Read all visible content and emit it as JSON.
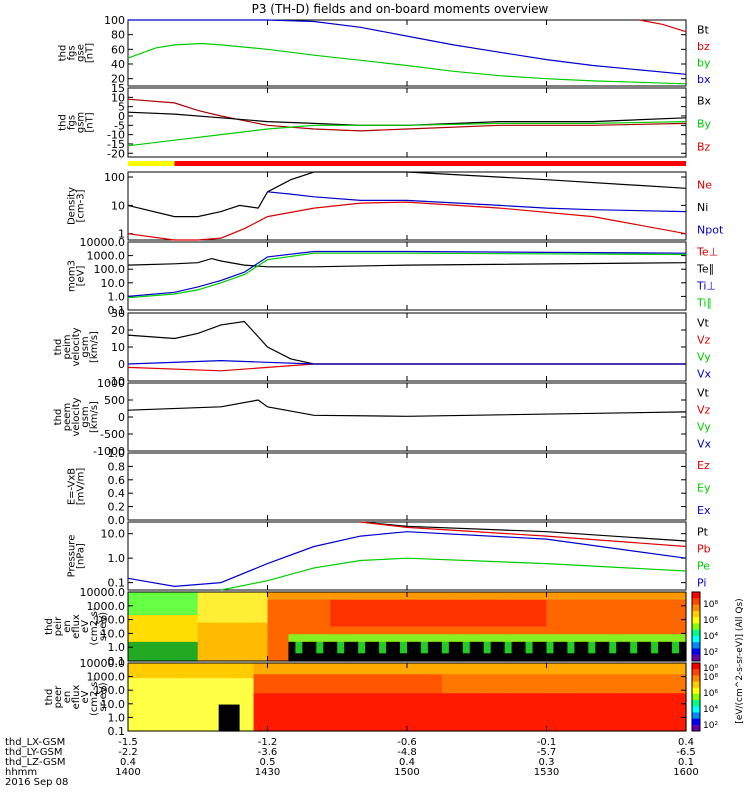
{
  "title": "P3 (TH-D) fields and on-board moments overview",
  "chart_data": [
    {
      "type": "line",
      "panel": "fgs_gse",
      "ylabel": [
        "thd",
        "fgs",
        "gse",
        "[nT]"
      ],
      "yticks": [
        "100",
        "80",
        "60",
        "40",
        "20"
      ],
      "ylim": [
        10,
        100
      ],
      "legend": [
        {
          "name": "Bt",
          "color": "#000000"
        },
        {
          "name": "bz",
          "color": "#dd0000"
        },
        {
          "name": "by",
          "color": "#00cc00"
        },
        {
          "name": "bx",
          "color": "#0000cc"
        }
      ],
      "series": [
        {
          "name": "bx",
          "color": "#0000cc",
          "x": [
            1400,
            1410,
            1420,
            1430,
            1440,
            1450,
            1500,
            1510,
            1520,
            1530,
            1540,
            1550,
            1600
          ],
          "y": [
            100,
            100,
            100,
            100,
            98,
            90,
            78,
            66,
            56,
            46,
            38,
            32,
            26
          ]
        },
        {
          "name": "by",
          "color": "#00cc00",
          "x": [
            1400,
            1406,
            1410,
            1416,
            1420,
            1430,
            1440,
            1450,
            1500,
            1510,
            1520,
            1530,
            1540,
            1550,
            1600
          ],
          "y": [
            48,
            62,
            66,
            68,
            66,
            60,
            52,
            45,
            38,
            30,
            24,
            20,
            17,
            15,
            13
          ]
        },
        {
          "name": "bz",
          "color": "#dd0000",
          "x": [
            1550,
            1555,
            1600
          ],
          "y": [
            100,
            94,
            84
          ]
        }
      ]
    },
    {
      "type": "line",
      "panel": "fgs_gsm",
      "ylabel": [
        "thd",
        "fgs",
        "gsm",
        "[nT]"
      ],
      "yticks": [
        "15",
        "10",
        "5",
        "0",
        "-5",
        "-10",
        "-15",
        "-20"
      ],
      "ylim": [
        -22,
        15
      ],
      "legend": [
        {
          "name": "Bx",
          "color": "#000000"
        },
        {
          "name": "By",
          "color": "#00cc00"
        },
        {
          "name": "Bz",
          "color": "#dd0000"
        }
      ],
      "series": [
        {
          "name": "Bz",
          "color": "#aa0000",
          "x": [
            1400,
            1410,
            1415,
            1420,
            1430,
            1440,
            1450,
            1500,
            1520,
            1540,
            1600
          ],
          "y": [
            9,
            7,
            3,
            0,
            -5,
            -7,
            -8,
            -7,
            -5,
            -5,
            -4
          ]
        },
        {
          "name": "Bx",
          "color": "#000000",
          "x": [
            1400,
            1410,
            1420,
            1430,
            1440,
            1450,
            1500,
            1520,
            1540,
            1600
          ],
          "y": [
            2,
            1,
            -1,
            -3,
            -4,
            -5,
            -5,
            -3,
            -3,
            -1
          ]
        },
        {
          "name": "By",
          "color": "#00cc00",
          "x": [
            1400,
            1410,
            1420,
            1430,
            1440,
            1450,
            1500,
            1520,
            1540,
            1600
          ],
          "y": [
            -16,
            -13,
            -10,
            -7,
            -5,
            -5,
            -5,
            -4,
            -4,
            -3
          ]
        }
      ]
    },
    {
      "type": "line",
      "panel": "density",
      "ylabel": [
        "Density",
        "[cm-3]"
      ],
      "yticks": [
        "100",
        "10",
        "1"
      ],
      "ylog": true,
      "ylim": [
        0.6,
        150
      ],
      "legend": [
        {
          "name": "Ne",
          "color": "#dd0000"
        },
        {
          "name": "Ni",
          "color": "#000000"
        },
        {
          "name": "Npot",
          "color": "#0000cc"
        }
      ],
      "series": [
        {
          "name": "Ni",
          "color": "#000000",
          "x": [
            1400,
            1410,
            1415,
            1420,
            1424,
            1428,
            1430,
            1435,
            1440,
            1500,
            1530,
            1600
          ],
          "y": [
            10,
            4,
            4,
            6,
            10,
            8,
            30,
            80,
            150,
            150,
            80,
            40
          ]
        },
        {
          "name": "Ne",
          "color": "#dd0000",
          "x": [
            1400,
            1410,
            1415,
            1420,
            1425,
            1430,
            1440,
            1450,
            1500,
            1520,
            1540,
            1600
          ],
          "y": [
            1,
            0.6,
            0.6,
            0.7,
            1.5,
            4,
            8,
            12,
            13,
            8,
            4,
            1
          ]
        },
        {
          "name": "Npot",
          "color": "#0000cc",
          "x": [
            1430,
            1435,
            1440,
            1450,
            1500,
            1520,
            1530,
            1540,
            1600
          ],
          "y": [
            30,
            25,
            20,
            15,
            15,
            10,
            8,
            7,
            6
          ]
        }
      ]
    },
    {
      "type": "line",
      "panel": "temperature",
      "ylabel": [
        "mom3",
        "[eV]"
      ],
      "yticks": [
        "10000.0",
        "1000.0",
        "100.0",
        "10.0",
        "1.0",
        "0.1"
      ],
      "ylog": true,
      "ylim": [
        0.1,
        10000
      ],
      "legend": [
        {
          "name": "Te⊥",
          "color": "#dd0000"
        },
        {
          "name": "Te∥",
          "color": "#000000"
        },
        {
          "name": "Ti⊥",
          "color": "#0000cc"
        },
        {
          "name": "Ti∥",
          "color": "#00cc00"
        }
      ],
      "series": [
        {
          "name": "Te∥",
          "color": "#000000",
          "x": [
            1400,
            1410,
            1415,
            1418,
            1420,
            1425,
            1430,
            1440,
            1500,
            1600
          ],
          "y": [
            200,
            250,
            300,
            600,
            400,
            200,
            150,
            150,
            200,
            300
          ]
        },
        {
          "name": "Ti⊥",
          "color": "#0000cc",
          "x": [
            1400,
            1410,
            1415,
            1420,
            1425,
            1430,
            1440,
            1500,
            1600
          ],
          "y": [
            1,
            2,
            5,
            15,
            60,
            800,
            2000,
            2000,
            1500
          ]
        },
        {
          "name": "Ti∥",
          "color": "#00cc00",
          "x": [
            1400,
            1410,
            1415,
            1420,
            1425,
            1430,
            1440,
            1500,
            1600
          ],
          "y": [
            0.8,
            1.5,
            3,
            10,
            40,
            500,
            1500,
            1500,
            1200
          ]
        }
      ]
    },
    {
      "type": "line",
      "panel": "peim_velocity",
      "ylabel": [
        "thd",
        "peim",
        "velocity",
        "gsm",
        "[km/s]"
      ],
      "yticks": [
        "30",
        "20",
        "10",
        "0",
        "-10"
      ],
      "ylim": [
        -10,
        30
      ],
      "legend": [
        {
          "name": "Vt",
          "color": "#000000"
        },
        {
          "name": "Vz",
          "color": "#dd0000"
        },
        {
          "name": "Vy",
          "color": "#00cc00"
        },
        {
          "name": "Vx",
          "color": "#0000cc"
        }
      ],
      "series": [
        {
          "name": "Vt",
          "color": "#000000",
          "x": [
            1400,
            1410,
            1415,
            1420,
            1425,
            1430,
            1435,
            1440,
            1600
          ],
          "y": [
            17,
            15,
            18,
            23,
            25,
            10,
            3,
            0,
            0
          ]
        },
        {
          "name": "Vz",
          "color": "#dd0000",
          "x": [
            1400,
            1420,
            1430,
            1440,
            1600
          ],
          "y": [
            -2,
            -4,
            -2,
            0,
            0
          ]
        },
        {
          "name": "Vx",
          "color": "#0000cc",
          "x": [
            1400,
            1420,
            1430,
            1440,
            1600
          ],
          "y": [
            0,
            2,
            1,
            0,
            0
          ]
        }
      ]
    },
    {
      "type": "line",
      "panel": "peem_velocity",
      "ylabel": [
        "thd",
        "peem",
        "velocity",
        "gsm",
        "[km/s]"
      ],
      "yticks": [
        "1000",
        "500",
        "0",
        "-500",
        "-1000"
      ],
      "ylim": [
        -1000,
        1000
      ],
      "legend": [
        {
          "name": "Vt",
          "color": "#000000"
        },
        {
          "name": "Vz",
          "color": "#dd0000"
        },
        {
          "name": "Vy",
          "color": "#00cc00"
        },
        {
          "name": "Vx",
          "color": "#0000cc"
        }
      ],
      "series": [
        {
          "name": "Vt",
          "color": "#000000",
          "x": [
            1400,
            1420,
            1428,
            1430,
            1440,
            1500,
            1600
          ],
          "y": [
            200,
            300,
            500,
            300,
            50,
            20,
            150
          ]
        }
      ]
    },
    {
      "type": "line",
      "panel": "efield",
      "ylabel": [
        "E=-VxB",
        "[mV/m]"
      ],
      "yticks": [
        "1.0",
        "0.8",
        "0.6",
        "0.4",
        "0.2",
        "0.0"
      ],
      "ylim": [
        0,
        1
      ],
      "legend": [
        {
          "name": "Ez",
          "color": "#dd0000"
        },
        {
          "name": "Ey",
          "color": "#00cc00"
        },
        {
          "name": "Ex",
          "color": "#0000cc"
        }
      ],
      "series": []
    },
    {
      "type": "line",
      "panel": "pressure",
      "ylabel": [
        "Pressure",
        "[nPa]"
      ],
      "yticks": [
        "10.0",
        "1.0",
        "0.1"
      ],
      "ylog": true,
      "ylim": [
        0.05,
        30
      ],
      "legend": [
        {
          "name": "Pt",
          "color": "#000000"
        },
        {
          "name": "Pb",
          "color": "#dd0000"
        },
        {
          "name": "Pe",
          "color": "#00cc00"
        },
        {
          "name": "Pi",
          "color": "#0000cc"
        }
      ],
      "series": [
        {
          "name": "Pt",
          "color": "#000000",
          "x": [
            1450,
            1500,
            1530,
            1600
          ],
          "y": [
            30,
            20,
            12,
            5
          ]
        },
        {
          "name": "Pb",
          "color": "#dd0000",
          "x": [
            1450,
            1500,
            1530,
            1600
          ],
          "y": [
            30,
            18,
            8,
            3
          ]
        },
        {
          "name": "Pi",
          "color": "#0000cc",
          "x": [
            1400,
            1410,
            1420,
            1430,
            1440,
            1450,
            1500,
            1530,
            1600
          ],
          "y": [
            0.15,
            0.07,
            0.1,
            0.6,
            3,
            8,
            12,
            6,
            1
          ]
        },
        {
          "name": "Pe",
          "color": "#00cc00",
          "x": [
            1420,
            1430,
            1440,
            1450,
            1500,
            1530,
            1600
          ],
          "y": [
            0.05,
            0.12,
            0.4,
            0.8,
            1,
            0.6,
            0.3
          ]
        }
      ]
    },
    {
      "type": "heatmap",
      "panel": "peir_en_eflux",
      "ylabel": [
        "thd",
        "peir",
        "en",
        "eflux",
        "eV",
        "(cm2-s-",
        "sr-eV)"
      ],
      "yticks": [
        "10000.0",
        "1000.0",
        "100.0",
        "10.0",
        "1.0",
        "0.1"
      ],
      "ylog": true,
      "ylim": [
        0.1,
        10000
      ]
    },
    {
      "type": "heatmap",
      "panel": "peer_en_eflux",
      "ylabel": [
        "thd",
        "peer",
        "en",
        "eflux",
        "eV",
        "(cm2-s-",
        "sr-eV)"
      ],
      "yticks": [
        "10000.0",
        "1000.0",
        "100.0",
        "10.0",
        "1.0",
        "0.1"
      ],
      "ylog": true,
      "ylim": [
        0.1,
        10000
      ]
    }
  ],
  "colorbar": {
    "label": "[eV/(cm^2-s-sr-eV)] (All Qs)",
    "ticks": [
      "10⁸",
      "10⁶",
      "10⁴",
      "10²",
      "10⁰",
      "10⁸",
      "10⁶",
      "10⁴",
      "10²"
    ],
    "colors": [
      "#ff0000",
      "#ff4400",
      "#ff8800",
      "#ffcc00",
      "#ffff00",
      "#88ff00",
      "#00ff88",
      "#00ffff",
      "#0088ff",
      "#0000ff",
      "#6600aa"
    ]
  },
  "xaxis": {
    "rows": [
      {
        "label": "thd_LX-GSM",
        "values": [
          "-1.5",
          "-1.2",
          "-0.6",
          "-0.1",
          "0.4"
        ]
      },
      {
        "label": "thd_LY-GSM",
        "values": [
          "-2.2",
          "-3.6",
          "-4.8",
          "-5.7",
          "-6.5"
        ]
      },
      {
        "label": "thd_LZ-GSM",
        "values": [
          "0.4",
          "0.5",
          "0.4",
          "0.3",
          "0.1"
        ]
      },
      {
        "label": "hhmm",
        "values": [
          "1400",
          "1430",
          "1500",
          "1530",
          "1600"
        ]
      }
    ],
    "date": "2016 Sep 08"
  },
  "status_bar": {
    "segments": [
      {
        "from": 1400,
        "to": 1410,
        "color": "#ffff00"
      },
      {
        "from": 1410,
        "to": 1600,
        "color": "#ff0000"
      }
    ]
  }
}
